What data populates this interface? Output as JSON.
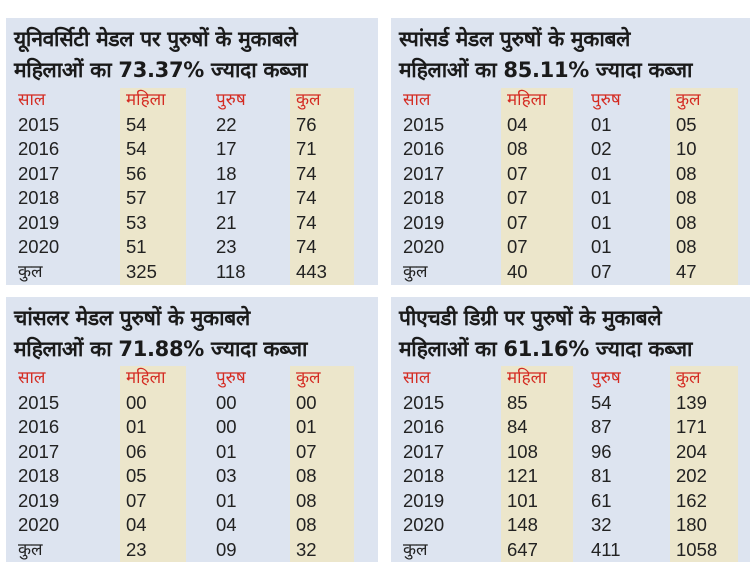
{
  "headers": [
    "साल",
    "महिला",
    "पुरुष",
    "कुल"
  ],
  "panels": [
    {
      "title_line1": "यूनिवर्सिटी मेडल पर पुरुषों के मुकाबले",
      "title_line2": "महिलाओं का 73.37% ज्यादा कब्जा",
      "rows": [
        [
          "2015",
          "54",
          "22",
          "76"
        ],
        [
          "2016",
          "54",
          "17",
          "71"
        ],
        [
          "2017",
          "56",
          "18",
          "74"
        ],
        [
          "2018",
          "57",
          "17",
          "74"
        ],
        [
          "2019",
          "53",
          "21",
          "74"
        ],
        [
          "2020",
          "51",
          "23",
          "74"
        ],
        [
          "कुल",
          "325",
          "118",
          "443"
        ]
      ]
    },
    {
      "title_line1": "स्पांसर्ड मेडल  पुरुषों के मुकाबले",
      "title_line2": "महिलाओं का 85.11% ज्यादा कब्जा",
      "rows": [
        [
          "2015",
          "04",
          "01",
          "05"
        ],
        [
          "2016",
          "08",
          "02",
          "10"
        ],
        [
          "2017",
          "07",
          "01",
          "08"
        ],
        [
          "2018",
          "07",
          "01",
          "08"
        ],
        [
          "2019",
          "07",
          "01",
          "08"
        ],
        [
          "2020",
          "07",
          "01",
          "08"
        ],
        [
          "कुल",
          "40",
          "07",
          "47"
        ]
      ]
    },
    {
      "title_line1": "चांसलर मेडल पुरुषों के मुकाबले",
      "title_line2": "महिलाओं का 71.88% ज्यादा कब्जा",
      "rows": [
        [
          "2015",
          "00",
          "00",
          "00"
        ],
        [
          "2016",
          "01",
          "00",
          "01"
        ],
        [
          "2017",
          "06",
          "01",
          "07"
        ],
        [
          "2018",
          "05",
          "03",
          "08"
        ],
        [
          "2019",
          "07",
          "01",
          "08"
        ],
        [
          "2020",
          "04",
          "04",
          "08"
        ],
        [
          "कुल",
          "23",
          "09",
          "32"
        ]
      ]
    },
    {
      "title_line1": "पीएचडी डिग्री पर  पुरुषों के मुकाबले",
      "title_line2": "महिलाओं का 61.16% ज्यादा कब्जा",
      "rows": [
        [
          "2015",
          "85",
          "54",
          "139"
        ],
        [
          "2016",
          "84",
          "87",
          "171"
        ],
        [
          "2017",
          "108",
          "96",
          "204"
        ],
        [
          "2018",
          "121",
          "81",
          "202"
        ],
        [
          "2019",
          "101",
          "61",
          "162"
        ],
        [
          "2020",
          "148",
          "32",
          "180"
        ],
        [
          "कुल",
          "647",
          "411",
          "1058"
        ]
      ]
    }
  ],
  "colors": {
    "panel_bg": "#dde4f0",
    "column_highlight": "#ece6cb",
    "header_text": "#d42b22",
    "body_text": "#222222"
  }
}
